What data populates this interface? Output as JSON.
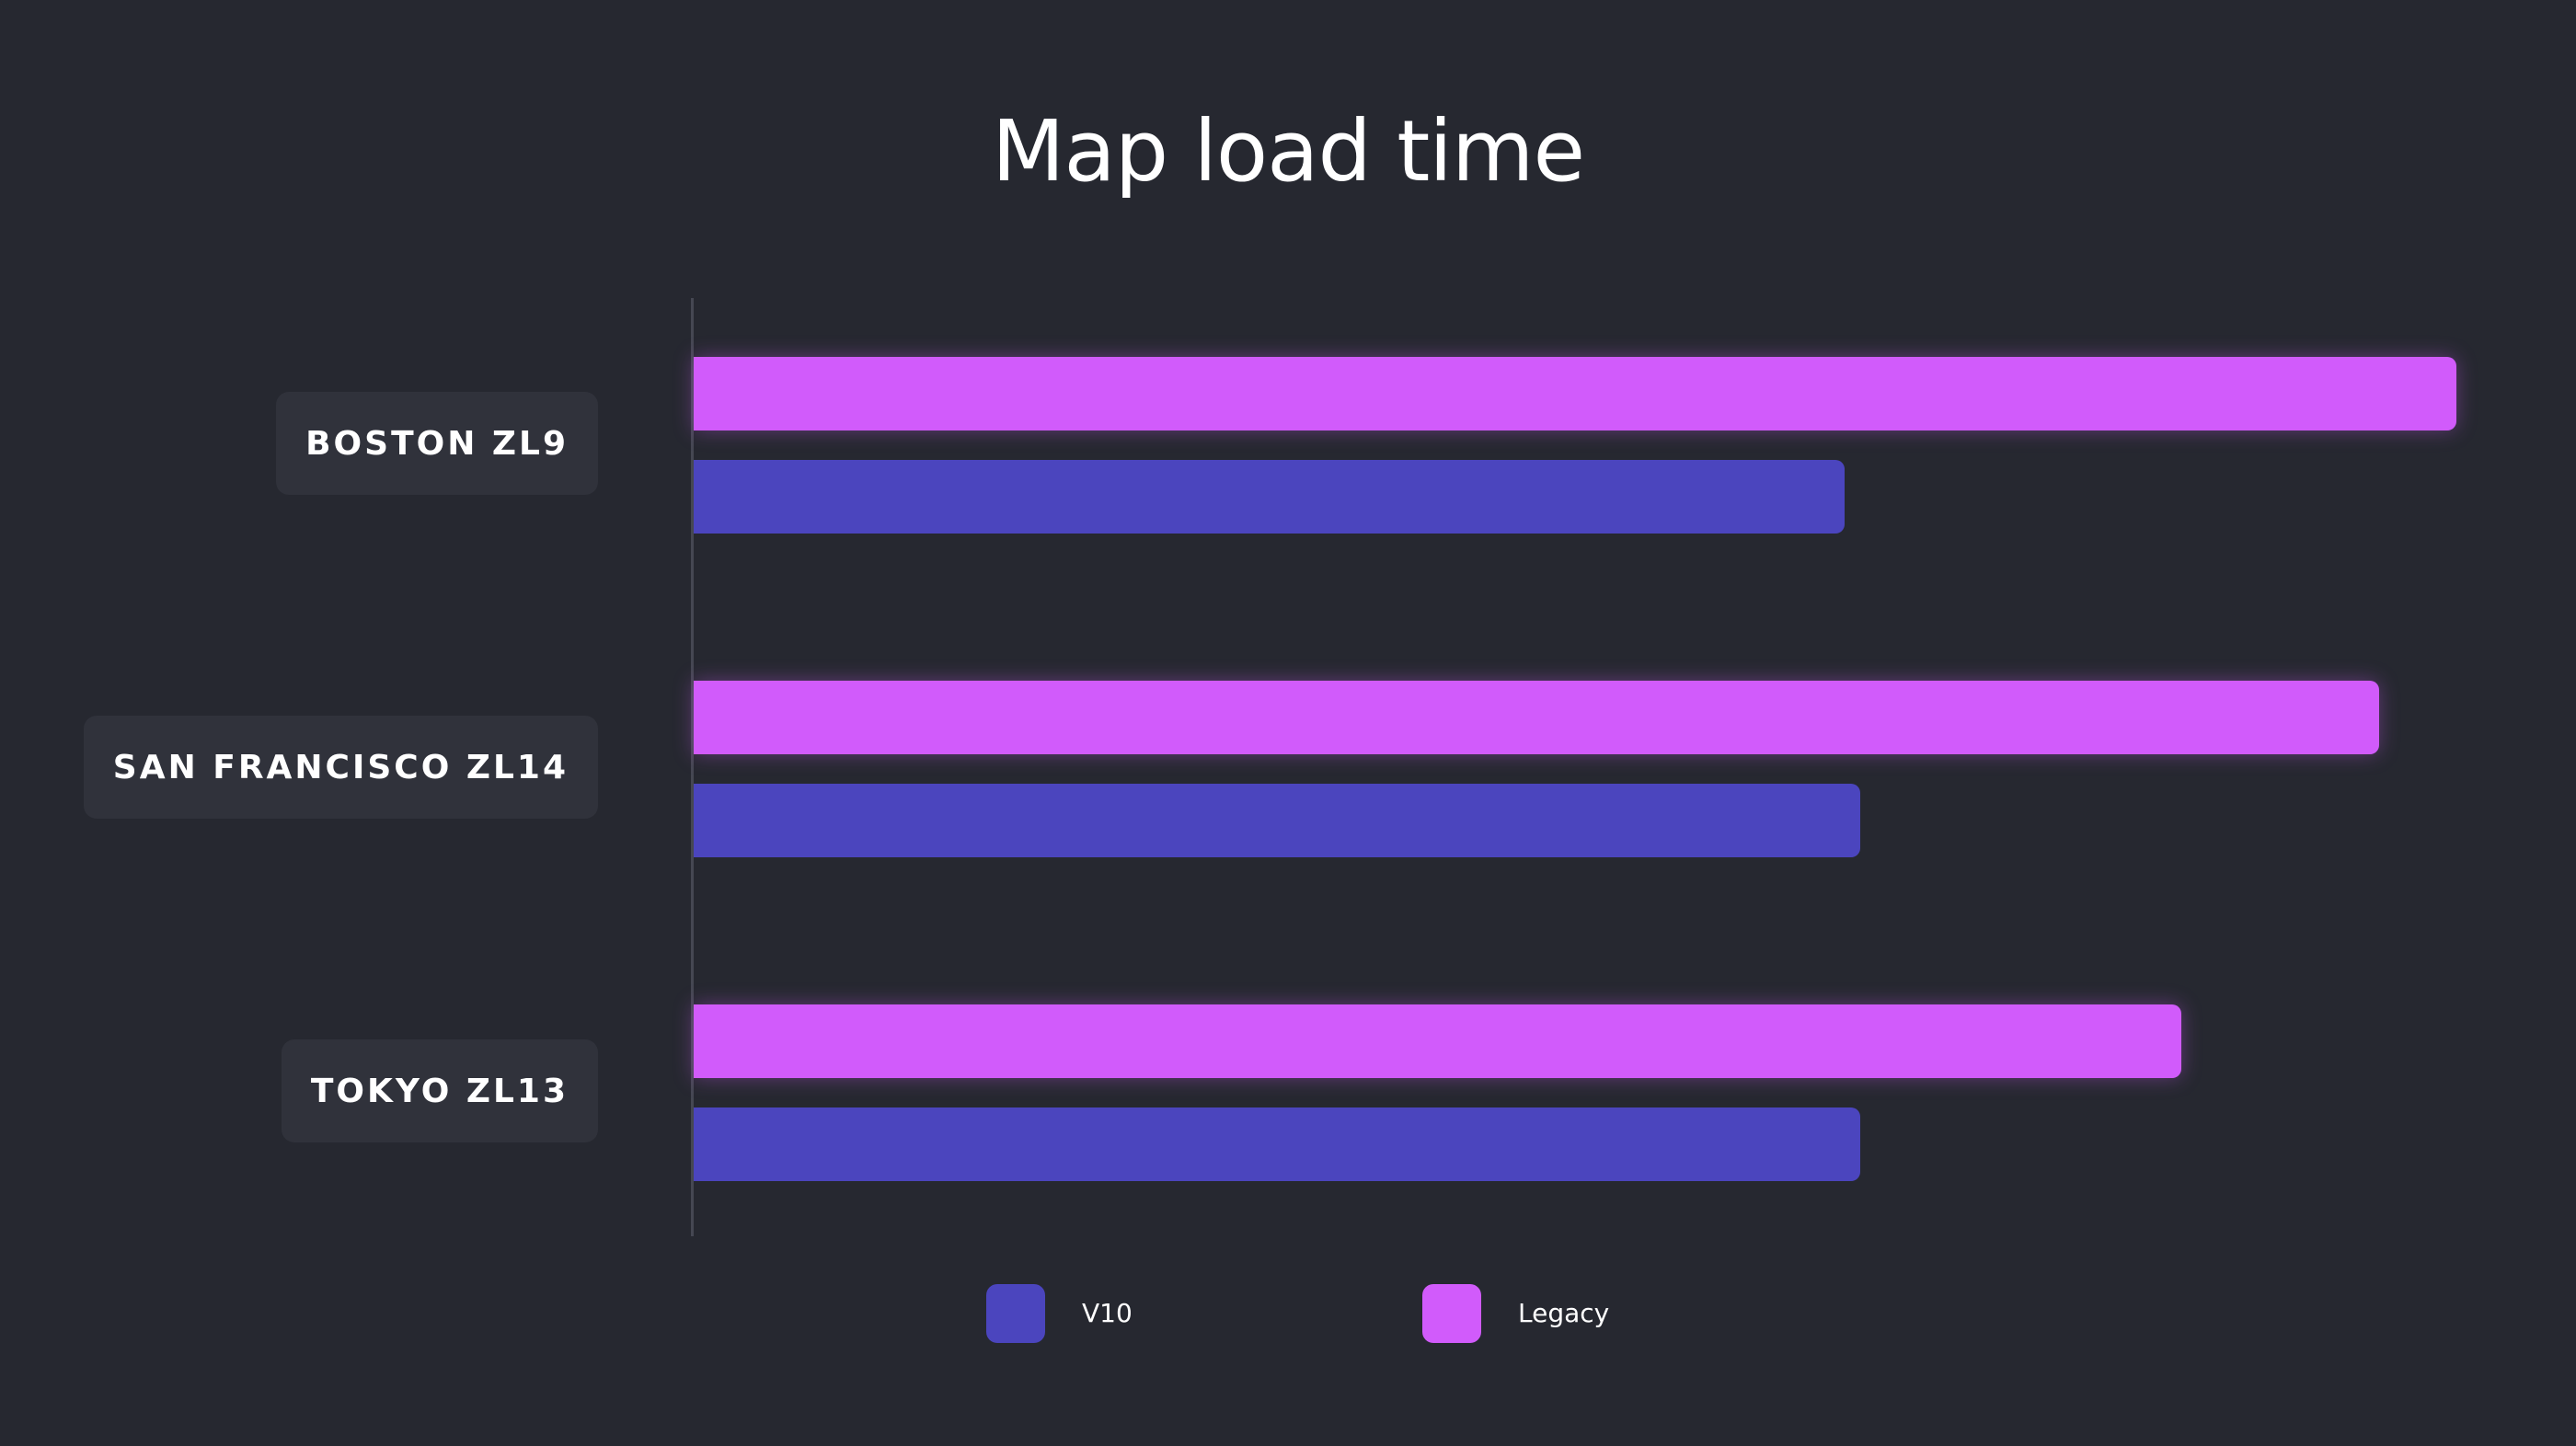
{
  "chart_data": {
    "type": "bar",
    "orientation": "horizontal",
    "title": "Map load time",
    "categories": [
      "BOSTON ZL9",
      "SAN FRANCISCO ZL14",
      "TOKYO ZL13"
    ],
    "series": [
      {
        "name": "Legacy",
        "color": "#d15bfb",
        "values": [
          100,
          95.6,
          84.4
        ]
      },
      {
        "name": "V10",
        "color": "#4b45be",
        "values": [
          65.3,
          66.2,
          66.2
        ]
      }
    ],
    "xlim": [
      0,
      100
    ],
    "grid": false,
    "legend_position": "bottom"
  },
  "legend": {
    "items": [
      {
        "label": "V10",
        "color": "#4b45be"
      },
      {
        "label": "Legacy",
        "color": "#d15bfb"
      }
    ]
  }
}
